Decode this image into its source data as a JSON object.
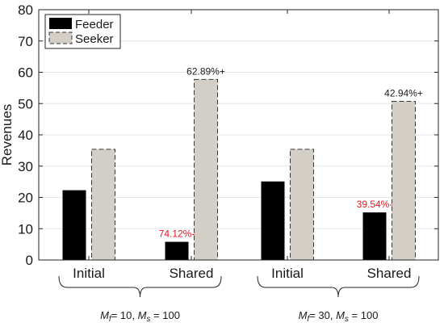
{
  "chart_data": {
    "type": "bar",
    "ylabel": "Revenues",
    "xlabel": "",
    "ylim": [
      0,
      80
    ],
    "yticks": [
      0,
      10,
      20,
      30,
      40,
      50,
      60,
      70,
      80
    ],
    "grid": true,
    "legend_position": "top-left",
    "categories": [
      "Initial",
      "Shared",
      "Initial",
      "Shared"
    ],
    "series": [
      {
        "name": "Feeder",
        "values": [
          22.3,
          5.8,
          25.1,
          15.2
        ],
        "color": "#000000"
      },
      {
        "name": "Seeker",
        "values": [
          35.4,
          57.7,
          35.4,
          50.7
        ],
        "color": "#d3cfc7"
      }
    ],
    "annotations": [
      {
        "text": "74.12%-",
        "category_index": 1,
        "series": "Feeder",
        "color": "#e8161b"
      },
      {
        "text": "62.89%+",
        "category_index": 1,
        "series": "Seeker",
        "color": "#1a1a1a"
      },
      {
        "text": "39.54%-",
        "category_index": 3,
        "series": "Feeder",
        "color": "#e8161b"
      },
      {
        "text": "42.94%+",
        "category_index": 3,
        "series": "Seeker",
        "color": "#1a1a1a"
      }
    ],
    "groups": [
      {
        "m_label": "M",
        "m_sub": "f",
        "m_value": "= 10, ",
        "s_label": "M",
        "s_sub": "s",
        "s_value": " = 100",
        "categories": [
          0,
          1
        ]
      },
      {
        "m_label": "M",
        "m_sub": "f",
        "m_value": "= 30, ",
        "s_label": "M",
        "s_sub": "s",
        "s_value": " = 100",
        "categories": [
          2,
          3
        ]
      }
    ]
  }
}
